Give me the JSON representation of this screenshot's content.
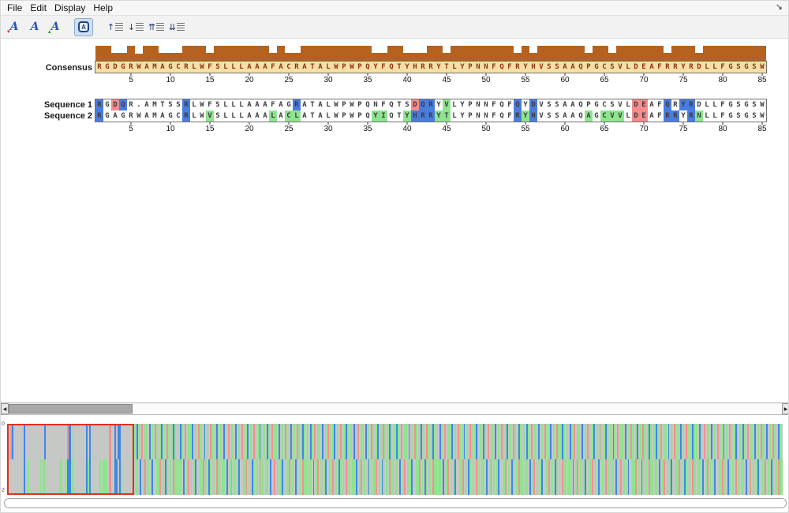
{
  "window": {
    "menu": [
      "File",
      "Edit",
      "Display",
      "Help"
    ]
  },
  "icons": {
    "font_letter": "A",
    "marker_down": "▾",
    "marker_up": "▴",
    "arrow_up": "↑",
    "arrow_down": "↓",
    "arrow_top": "⇈",
    "arrow_bottom": "⇊",
    "scroll_left": "◀",
    "scroll_right": "▶",
    "window_corner": "↘"
  },
  "alignment": {
    "labels": {
      "consensus": "Consensus"
    },
    "consensus": "RGDGRWAMAGCRLWFSLLLAAAFACRATALWPWPQYFQTYHRRYTLYPNNFQFRYHVSSAAQPGCSVLDEAFRRYRDLLFGSGSW",
    "sequences": [
      {
        "label": "Sequence 1",
        "residues": "RGDQR.AMTSSRLWFSLLLAAAFAGRATALWPWPQNFQTSDQRYVLYPNNFQFQYDVSSAAQPGCSVLDEAFQRYRDLLFGSGSW",
        "highlights": {
          "1": "blue",
          "3": "red",
          "4": "blue",
          "12": "blue",
          "26": "blue",
          "41": "red",
          "42": "blue",
          "43": "blue",
          "45": "green",
          "54": "blue",
          "56": "blue",
          "69": "red",
          "70": "red",
          "73": "blue",
          "75": "blue",
          "76": "blue"
        }
      },
      {
        "label": "Sequence 2",
        "residues": "RGAGRWAMAGCRLWVSLLLAAALACLATALWPWPQYIQTYHRRYTLYPNNFQFRYHVSSAAQAGCVVLDEAFRRYRNLLFGSGSW",
        "highlights": {
          "1": "blue",
          "12": "blue",
          "15": "green",
          "23": "green",
          "25": "green",
          "26": "green",
          "36": "green",
          "37": "green",
          "40": "green",
          "41": "blue",
          "42": "blue",
          "43": "blue",
          "44": "green",
          "45": "green",
          "54": "blue",
          "55": "green",
          "56": "blue",
          "63": "green",
          "65": "green",
          "66": "green",
          "67": "green",
          "69": "red",
          "70": "red",
          "73": "blue",
          "74": "blue",
          "76": "blue",
          "77": "green"
        }
      }
    ],
    "ruler": [
      5,
      10,
      15,
      20,
      25,
      30,
      35,
      40,
      45,
      50,
      55,
      60,
      65,
      70,
      75,
      80,
      85
    ],
    "conservation": [
      1,
      1,
      0.55,
      0.55,
      1,
      0.45,
      1,
      1,
      0.55,
      0.55,
      0.55,
      1,
      1,
      1,
      0.55,
      1,
      1,
      1,
      1,
      1,
      1,
      1,
      0.55,
      1,
      0.55,
      0.55,
      1,
      1,
      1,
      1,
      1,
      1,
      1,
      1,
      1,
      0.55,
      0.55,
      1,
      1,
      0.55,
      0.55,
      0.55,
      1,
      1,
      0.55,
      1,
      1,
      1,
      1,
      1,
      1,
      1,
      1,
      0.55,
      1,
      0.55,
      1,
      1,
      1,
      1,
      1,
      1,
      0.55,
      1,
      1,
      0.55,
      1,
      1,
      1,
      1,
      1,
      1,
      0.55,
      1,
      1,
      1,
      0.55,
      1,
      1,
      1,
      1,
      1,
      1,
      1,
      1
    ]
  },
  "colors": {
    "blue": "#4a7ce0",
    "green": "#8fe48f",
    "red": "#f58b8b",
    "histogram": "#b5621e",
    "consensus_bg": "#f7dfa9",
    "consensus_text": "#8a3310",
    "residue_text": "#3c3c3c"
  },
  "overview": {
    "top_label": "0",
    "bottom_label": "2",
    "viewport_columns": 85,
    "stripe_colors": {
      "x": "#c6c8c6",
      "g": "#8fe48f",
      "r": "#f59090",
      "b": "#3f86e8",
      "w": "#f2f2f2"
    },
    "rows": [
      {
        "prefix": "bxrbxxxxxxxbxxxxxxxxxxxxxbxxxxxxxxxxxxxxrbbxgxxxxxxxxbxbxxxxxxxxxxxxrrxxbxbbxxxxxxxxx",
        "motif": "gxbgxrxggxbxgxrgxgbxgxrgxgbgx",
        "repeat": 15
      },
      {
        "prefix": "bxxxxxxxxxxbxxgxxxxxxxgxggxxxxxxxxxggxxgbbbggxxxxxxxxbgbxxxxxxgxgggxrrxxbbxbgxxxxxxxx",
        "motif": "xggxbxgrxgxgbxxggrxgxbgxgxrgg",
        "repeat": 15
      }
    ]
  }
}
